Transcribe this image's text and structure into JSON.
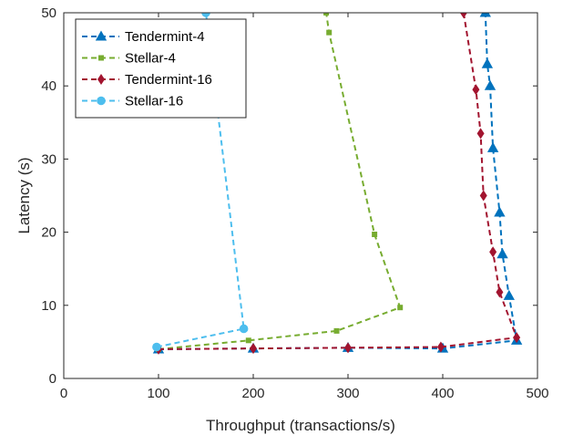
{
  "chart_data": {
    "type": "line",
    "title": "",
    "xlabel": "Throughput (transactions/s)",
    "ylabel": "Latency (s)",
    "xlim": [
      0,
      500
    ],
    "ylim": [
      0,
      50
    ],
    "xticks": [
      0,
      100,
      200,
      300,
      400,
      500
    ],
    "yticks": [
      0,
      10,
      20,
      30,
      40,
      50
    ],
    "grid": false,
    "legend_position": "top-left",
    "series": [
      {
        "name": "Tendermint-4",
        "color": "#0072BD",
        "marker": "triangle",
        "x": [
          100,
          200,
          300,
          400,
          478,
          470,
          463,
          460,
          453,
          450,
          447,
          445
        ],
        "y": [
          4,
          4.1,
          4.2,
          4.1,
          5.2,
          11.3,
          17,
          22.7,
          31.5,
          40,
          43,
          50
        ]
      },
      {
        "name": "Stellar-4",
        "color": "#77AC30",
        "marker": "square",
        "x": [
          100,
          195,
          288,
          355,
          328,
          280,
          277
        ],
        "y": [
          4,
          5.2,
          6.5,
          9.7,
          19.7,
          47.3,
          50
        ]
      },
      {
        "name": "Tendermint-16",
        "color": "#A2142F",
        "marker": "diamond",
        "x": [
          100,
          200,
          300,
          398,
          478,
          460,
          453,
          443,
          440,
          435,
          422
        ],
        "y": [
          4,
          4.1,
          4.2,
          4.3,
          5.6,
          11.8,
          17.3,
          25,
          33.5,
          39.5,
          50
        ]
      },
      {
        "name": "Stellar-16",
        "color": "#4DBEEE",
        "marker": "circle",
        "x": [
          98,
          190,
          150
        ],
        "y": [
          4.3,
          6.8,
          50
        ]
      }
    ]
  }
}
